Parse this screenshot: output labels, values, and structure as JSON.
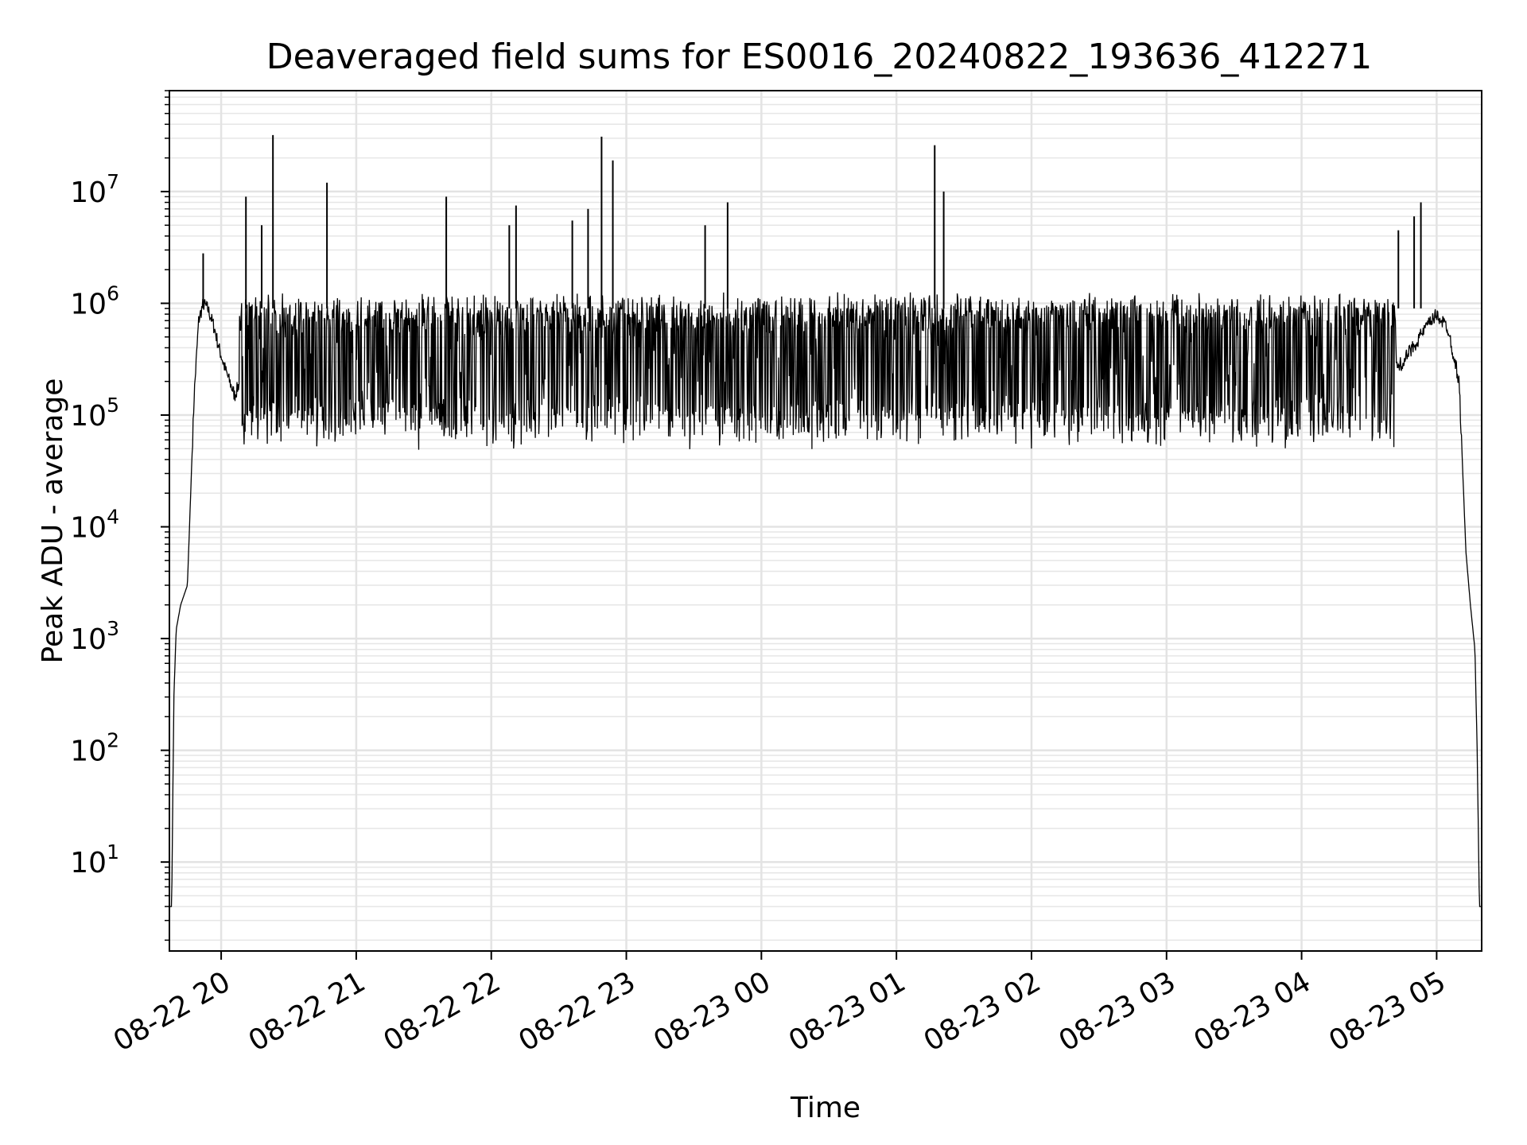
{
  "chart_data": {
    "type": "line",
    "title": "Deaveraged field sums for ES0016_20240822_193636_412271",
    "xlabel": "Time",
    "ylabel": "Peak ADU - average",
    "yscale": "log",
    "ylim": [
      1.6,
      80000000
    ],
    "xlim": [
      "2024-08-22 19:37",
      "2024-08-23 05:20"
    ],
    "grid": true,
    "x_ticks": [
      "08-22 20",
      "08-22 21",
      "08-22 22",
      "08-22 23",
      "08-23 00",
      "08-23 01",
      "08-23 02",
      "08-23 03",
      "08-23 04",
      "08-23 05"
    ],
    "y_ticks": [
      {
        "base": "10",
        "exp": "1",
        "value": 10
      },
      {
        "base": "10",
        "exp": "2",
        "value": 100
      },
      {
        "base": "10",
        "exp": "3",
        "value": 1000
      },
      {
        "base": "10",
        "exp": "4",
        "value": 10000
      },
      {
        "base": "10",
        "exp": "5",
        "value": 100000
      },
      {
        "base": "10",
        "exp": "6",
        "value": 1000000
      },
      {
        "base": "10",
        "exp": "7",
        "value": 10000000
      }
    ],
    "series": [
      {
        "color": "#000000",
        "x": [
          "2024-08-22 19:37",
          "2024-08-22 19:38",
          "2024-08-22 19:39",
          "2024-08-22 19:40",
          "2024-08-22 19:42",
          "2024-08-22 19:45",
          "2024-08-22 19:48",
          "2024-08-22 19:50",
          "2024-08-22 19:52",
          "2024-08-22 19:54",
          "2024-08-22 19:55",
          "2024-08-22 19:57",
          "2024-08-22 19:59",
          "2024-08-22 20:02",
          "2024-08-22 20:06",
          "2024-08-22 20:10",
          "2024-08-22 20:15",
          "2024-08-22 20:20",
          "2024-08-22 20:30",
          "2024-08-22 20:45",
          "2024-08-22 21:00",
          "2024-08-22 21:15",
          "2024-08-22 21:30",
          "2024-08-22 21:45",
          "2024-08-22 22:00",
          "2024-08-22 22:30",
          "2024-08-22 23:00",
          "2024-08-22 23:30",
          "2024-08-23 00:00",
          "2024-08-23 00:30",
          "2024-08-23 01:00",
          "2024-08-23 01:30",
          "2024-08-23 02:00",
          "2024-08-23 02:30",
          "2024-08-23 03:00",
          "2024-08-23 03:30",
          "2024-08-23 04:00",
          "2024-08-23 04:20",
          "2024-08-23 04:35",
          "2024-08-23 04:45",
          "2024-08-23 04:55",
          "2024-08-23 05:00",
          "2024-08-23 05:05",
          "2024-08-23 05:10",
          "2024-08-23 05:13",
          "2024-08-23 05:15",
          "2024-08-23 05:17",
          "2024-08-23 05:18",
          "2024-08-23 05:19",
          "2024-08-23 05:20"
        ],
        "y": [
          4,
          4,
          300,
          1200,
          2000,
          3000,
          150000,
          700000,
          1000000,
          900000,
          800000,
          600000,
          400000,
          250000,
          150000,
          250000,
          200000,
          300000,
          500000,
          600000,
          350000,
          150000,
          120000,
          100000,
          250000,
          500000,
          400000,
          300000,
          150000,
          200000,
          600000,
          500000,
          400000,
          300000,
          250000,
          200000,
          180000,
          150000,
          200000,
          300000,
          600000,
          800000,
          600000,
          200000,
          6000,
          2000,
          800,
          100,
          4,
          4
        ]
      }
    ],
    "spikes": [
      {
        "x": "2024-08-22 19:52",
        "y": 2800000
      },
      {
        "x": "2024-08-22 20:11",
        "y": 9000000
      },
      {
        "x": "2024-08-22 20:18",
        "y": 5000000
      },
      {
        "x": "2024-08-22 20:23",
        "y": 32000000
      },
      {
        "x": "2024-08-22 20:47",
        "y": 12000000
      },
      {
        "x": "2024-08-22 21:40",
        "y": 9000000
      },
      {
        "x": "2024-08-22 22:08",
        "y": 5000000
      },
      {
        "x": "2024-08-22 22:11",
        "y": 7500000
      },
      {
        "x": "2024-08-22 22:36",
        "y": 5500000
      },
      {
        "x": "2024-08-22 22:43",
        "y": 7000000
      },
      {
        "x": "2024-08-22 22:49",
        "y": 31000000
      },
      {
        "x": "2024-08-22 22:54",
        "y": 19000000
      },
      {
        "x": "2024-08-22 23:35",
        "y": 5000000
      },
      {
        "x": "2024-08-22 23:45",
        "y": 8000000
      },
      {
        "x": "2024-08-23 01:17",
        "y": 26000000
      },
      {
        "x": "2024-08-23 01:21",
        "y": 10000000
      },
      {
        "x": "2024-08-23 04:43",
        "y": 4500000
      },
      {
        "x": "2024-08-23 04:50",
        "y": 6000000
      },
      {
        "x": "2024-08-23 04:53",
        "y": 8000000
      }
    ]
  }
}
